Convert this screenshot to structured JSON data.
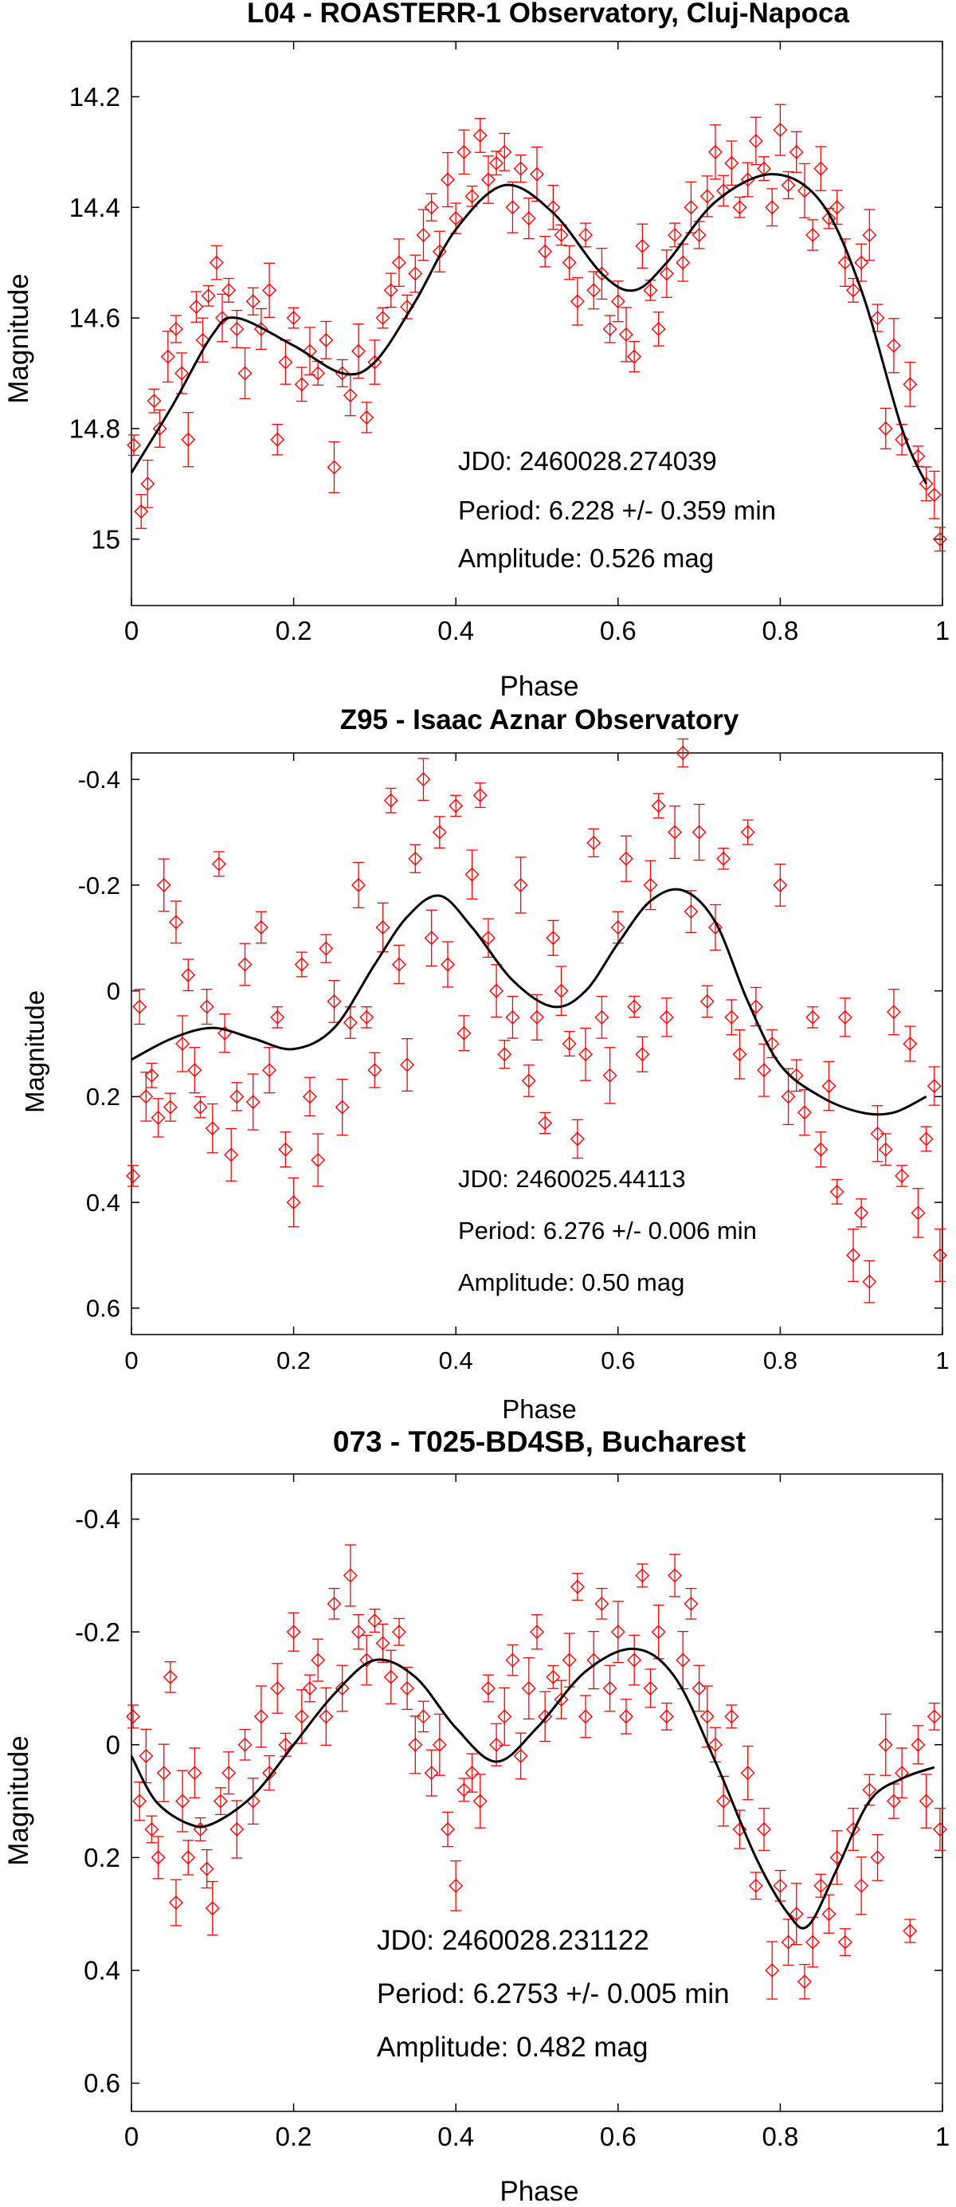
{
  "chart_data": [
    {
      "type": "scatter",
      "title": "L04 - ROASTERR-1 Observatory, Cluj-Napoca",
      "xlabel": "Phase",
      "ylabel": "Magnitude",
      "xlim": [
        0,
        1
      ],
      "ylim": [
        14.1,
        15.12
      ],
      "y_inverted": true,
      "xticks": [
        "0",
        "0.2",
        "0.4",
        "0.6",
        "0.8",
        "1"
      ],
      "yticks": [
        "14.2",
        "14.4",
        "14.6",
        "14.8",
        "15"
      ],
      "grid": false,
      "marker_color": "#ff0000",
      "fit_color": "#000000",
      "annotations": [
        "JD0: 2460028.274039",
        "Period: 6.228 +/- 0.359 min",
        "Amplitude: 0.526 mag"
      ],
      "fit_curve": {
        "x": [
          0,
          0.05,
          0.1,
          0.13,
          0.2,
          0.26,
          0.3,
          0.35,
          0.4,
          0.46,
          0.52,
          0.58,
          0.62,
          0.66,
          0.72,
          0.79,
          0.85,
          0.9,
          0.95,
          0.98
        ],
        "y": [
          14.88,
          14.76,
          14.63,
          14.6,
          14.65,
          14.7,
          14.68,
          14.57,
          14.44,
          14.36,
          14.41,
          14.52,
          14.55,
          14.5,
          14.39,
          14.34,
          14.39,
          14.55,
          14.8,
          14.9
        ]
      },
      "series": [
        {
          "x": [
            0.003,
            0.012,
            0.02,
            0.028,
            0.035,
            0.045,
            0.055,
            0.062,
            0.07,
            0.08,
            0.088,
            0.095,
            0.105,
            0.112,
            0.12,
            0.13,
            0.14,
            0.15,
            0.16,
            0.17,
            0.18,
            0.19,
            0.2,
            0.21,
            0.22,
            0.23,
            0.24,
            0.25,
            0.26,
            0.27,
            0.28,
            0.29,
            0.3,
            0.31,
            0.32,
            0.33,
            0.34,
            0.35,
            0.36,
            0.37,
            0.38,
            0.39,
            0.4,
            0.41,
            0.42,
            0.43,
            0.44,
            0.45,
            0.46,
            0.47,
            0.48,
            0.49,
            0.5,
            0.51,
            0.52,
            0.53,
            0.54,
            0.55,
            0.56,
            0.57,
            0.58,
            0.59,
            0.6,
            0.61,
            0.62,
            0.63,
            0.64,
            0.65,
            0.66,
            0.67,
            0.68,
            0.69,
            0.7,
            0.71,
            0.72,
            0.73,
            0.74,
            0.75,
            0.76,
            0.77,
            0.78,
            0.79,
            0.8,
            0.81,
            0.82,
            0.83,
            0.84,
            0.85,
            0.86,
            0.87,
            0.88,
            0.89,
            0.9,
            0.91,
            0.92,
            0.93,
            0.94,
            0.95,
            0.96,
            0.97,
            0.98,
            0.99,
            0.997
          ],
          "y": [
            14.83,
            14.95,
            14.9,
            14.75,
            14.8,
            14.67,
            14.62,
            14.7,
            14.82,
            14.58,
            14.64,
            14.56,
            14.5,
            14.6,
            14.55,
            14.62,
            14.7,
            14.57,
            14.62,
            14.55,
            14.82,
            14.68,
            14.6,
            14.72,
            14.66,
            14.7,
            14.64,
            14.87,
            14.7,
            14.74,
            14.66,
            14.78,
            14.68,
            14.6,
            14.55,
            14.5,
            14.58,
            14.52,
            14.45,
            14.4,
            14.48,
            14.35,
            14.42,
            14.3,
            14.38,
            14.27,
            14.35,
            14.32,
            14.3,
            14.4,
            14.33,
            14.42,
            14.34,
            14.48,
            14.4,
            14.45,
            14.5,
            14.57,
            14.45,
            14.55,
            14.52,
            14.62,
            14.57,
            14.63,
            14.67,
            14.47,
            14.55,
            14.62,
            14.52,
            14.45,
            14.5,
            14.4,
            14.45,
            14.38,
            14.3,
            14.37,
            14.32,
            14.4,
            14.35,
            14.28,
            14.33,
            14.4,
            14.26,
            14.36,
            14.3,
            14.37,
            14.45,
            14.33,
            14.42,
            14.4,
            14.5,
            14.55,
            14.5,
            14.45,
            14.6,
            14.8,
            14.65,
            14.82,
            14.72,
            14.85,
            14.9,
            14.92,
            15.0
          ]
        }
      ]
    },
    {
      "type": "scatter",
      "title": "Z95 - Isaac Aznar Observatory",
      "xlabel": "Phase",
      "ylabel": "Magnitude",
      "xlim": [
        0,
        1
      ],
      "ylim": [
        -0.45,
        0.65
      ],
      "y_inverted": true,
      "xticks": [
        "0",
        "0.2",
        "0.4",
        "0.6",
        "0.8",
        "1"
      ],
      "yticks": [
        "-0.4",
        "-0.2",
        "0",
        "0.2",
        "0.4",
        "0.6"
      ],
      "grid": false,
      "marker_color": "#ff0000",
      "fit_color": "#000000",
      "annotations": [
        "JD0: 2460025.44113",
        "Period: 6.276 +/- 0.006 min",
        "Amplitude: 0.50 mag"
      ],
      "fit_curve": {
        "x": [
          0,
          0.05,
          0.1,
          0.15,
          0.2,
          0.25,
          0.3,
          0.34,
          0.38,
          0.42,
          0.47,
          0.52,
          0.56,
          0.6,
          0.64,
          0.68,
          0.72,
          0.76,
          0.8,
          0.85,
          0.9,
          0.94,
          0.98
        ],
        "y": [
          0.13,
          0.09,
          0.07,
          0.09,
          0.11,
          0.07,
          -0.05,
          -0.14,
          -0.18,
          -0.12,
          -0.02,
          0.03,
          0.0,
          -0.09,
          -0.17,
          -0.19,
          -0.13,
          0.02,
          0.14,
          0.2,
          0.23,
          0.23,
          0.2
        ]
      },
      "series": [
        {
          "x": [
            0.002,
            0.01,
            0.018,
            0.025,
            0.033,
            0.04,
            0.048,
            0.055,
            0.063,
            0.07,
            0.078,
            0.085,
            0.093,
            0.1,
            0.108,
            0.115,
            0.123,
            0.13,
            0.14,
            0.15,
            0.16,
            0.17,
            0.18,
            0.19,
            0.2,
            0.21,
            0.22,
            0.23,
            0.24,
            0.25,
            0.26,
            0.27,
            0.28,
            0.29,
            0.3,
            0.31,
            0.32,
            0.33,
            0.34,
            0.35,
            0.36,
            0.37,
            0.38,
            0.39,
            0.4,
            0.41,
            0.42,
            0.43,
            0.44,
            0.45,
            0.46,
            0.47,
            0.48,
            0.49,
            0.5,
            0.51,
            0.52,
            0.53,
            0.54,
            0.55,
            0.56,
            0.57,
            0.58,
            0.59,
            0.6,
            0.61,
            0.62,
            0.63,
            0.64,
            0.65,
            0.66,
            0.67,
            0.68,
            0.69,
            0.7,
            0.71,
            0.72,
            0.73,
            0.74,
            0.75,
            0.76,
            0.77,
            0.78,
            0.79,
            0.8,
            0.81,
            0.82,
            0.83,
            0.84,
            0.85,
            0.86,
            0.87,
            0.88,
            0.89,
            0.9,
            0.91,
            0.92,
            0.93,
            0.94,
            0.95,
            0.96,
            0.97,
            0.98,
            0.99,
            0.997
          ],
          "y": [
            0.35,
            0.03,
            0.2,
            0.16,
            0.24,
            -0.2,
            0.22,
            -0.13,
            0.1,
            -0.03,
            0.15,
            0.22,
            0.03,
            0.26,
            -0.24,
            0.08,
            0.31,
            0.2,
            -0.05,
            0.21,
            -0.12,
            0.15,
            0.05,
            0.3,
            0.4,
            -0.05,
            0.2,
            0.32,
            -0.08,
            0.02,
            0.22,
            0.06,
            -0.2,
            0.05,
            0.15,
            -0.12,
            -0.36,
            -0.05,
            0.14,
            -0.25,
            -0.4,
            -0.1,
            -0.3,
            -0.05,
            -0.35,
            0.08,
            -0.22,
            -0.37,
            -0.1,
            0.0,
            0.12,
            0.05,
            -0.2,
            0.17,
            0.05,
            0.25,
            -0.1,
            0.0,
            0.1,
            0.28,
            0.12,
            -0.28,
            0.05,
            0.16,
            -0.12,
            -0.25,
            0.03,
            0.12,
            -0.2,
            -0.35,
            0.05,
            -0.3,
            -0.45,
            -0.15,
            -0.3,
            0.02,
            -0.12,
            -0.25,
            0.05,
            0.12,
            -0.3,
            0.03,
            0.15,
            0.1,
            -0.2,
            0.2,
            0.16,
            0.23,
            0.05,
            0.3,
            0.18,
            0.38,
            0.05,
            0.5,
            0.42,
            0.55,
            0.27,
            0.3,
            0.04,
            0.35,
            0.1,
            0.42,
            0.28,
            0.18,
            0.5
          ]
        }
      ]
    },
    {
      "type": "scatter",
      "title": "073 - T025-BD4SB, Bucharest",
      "xlabel": "Phase",
      "ylabel": "Magnitude",
      "xlim": [
        0,
        1
      ],
      "ylim": [
        -0.48,
        0.65
      ],
      "y_inverted": true,
      "xticks": [
        "0",
        "0.2",
        "0.4",
        "0.6",
        "0.8",
        "1"
      ],
      "yticks": [
        "-0.4",
        "-0.2",
        "0",
        "0.2",
        "0.4",
        "0.6"
      ],
      "grid": false,
      "marker_color": "#ff0000",
      "fit_color": "#000000",
      "annotations": [
        "JD0: 2460028.231122",
        "Period: 6.2753 +/- 0.005 min",
        "Amplitude: 0.482 mag"
      ],
      "fit_curve": {
        "x": [
          0,
          0.03,
          0.07,
          0.1,
          0.15,
          0.2,
          0.25,
          0.3,
          0.35,
          0.4,
          0.45,
          0.5,
          0.56,
          0.62,
          0.67,
          0.72,
          0.77,
          0.81,
          0.835,
          0.87,
          0.91,
          0.95,
          0.99
        ],
        "y": [
          0.02,
          0.1,
          0.14,
          0.14,
          0.09,
          0.0,
          -0.09,
          -0.15,
          -0.12,
          -0.03,
          0.03,
          -0.03,
          -0.13,
          -0.17,
          -0.12,
          0.03,
          0.2,
          0.3,
          0.32,
          0.22,
          0.1,
          0.06,
          0.04
        ]
      },
      "series": [
        {
          "x": [
            0.002,
            0.01,
            0.018,
            0.025,
            0.033,
            0.04,
            0.048,
            0.055,
            0.063,
            0.07,
            0.078,
            0.085,
            0.093,
            0.1,
            0.11,
            0.12,
            0.13,
            0.14,
            0.15,
            0.16,
            0.17,
            0.18,
            0.19,
            0.2,
            0.21,
            0.22,
            0.23,
            0.24,
            0.25,
            0.26,
            0.27,
            0.28,
            0.29,
            0.3,
            0.31,
            0.32,
            0.33,
            0.34,
            0.35,
            0.36,
            0.37,
            0.38,
            0.39,
            0.4,
            0.41,
            0.42,
            0.43,
            0.44,
            0.45,
            0.46,
            0.47,
            0.48,
            0.49,
            0.5,
            0.51,
            0.52,
            0.53,
            0.54,
            0.55,
            0.56,
            0.57,
            0.58,
            0.59,
            0.6,
            0.61,
            0.62,
            0.63,
            0.64,
            0.65,
            0.66,
            0.67,
            0.68,
            0.69,
            0.7,
            0.71,
            0.72,
            0.73,
            0.74,
            0.75,
            0.76,
            0.77,
            0.78,
            0.79,
            0.8,
            0.81,
            0.82,
            0.83,
            0.84,
            0.85,
            0.86,
            0.87,
            0.88,
            0.89,
            0.9,
            0.91,
            0.92,
            0.93,
            0.94,
            0.95,
            0.96,
            0.97,
            0.98,
            0.99,
            0.997
          ],
          "y": [
            -0.05,
            0.1,
            0.02,
            0.15,
            0.2,
            0.05,
            -0.12,
            0.28,
            0.1,
            0.2,
            0.05,
            0.15,
            0.22,
            0.29,
            0.1,
            0.05,
            0.15,
            0.0,
            0.1,
            -0.05,
            0.05,
            -0.1,
            0.0,
            -0.2,
            -0.05,
            -0.1,
            -0.15,
            -0.05,
            -0.25,
            -0.1,
            -0.3,
            -0.2,
            -0.15,
            -0.22,
            -0.18,
            -0.12,
            -0.2,
            -0.1,
            0.0,
            -0.05,
            0.05,
            0.0,
            0.15,
            0.25,
            0.08,
            0.05,
            0.1,
            -0.1,
            0.0,
            -0.05,
            -0.15,
            0.02,
            -0.1,
            -0.2,
            -0.05,
            -0.12,
            -0.08,
            -0.15,
            -0.28,
            -0.05,
            -0.15,
            -0.25,
            -0.1,
            -0.2,
            -0.05,
            -0.15,
            -0.3,
            -0.1,
            -0.2,
            -0.05,
            -0.3,
            -0.15,
            -0.25,
            -0.1,
            -0.05,
            0.0,
            0.1,
            -0.05,
            0.15,
            0.05,
            0.25,
            0.15,
            0.4,
            0.25,
            0.35,
            0.3,
            0.42,
            0.35,
            0.25,
            0.3,
            0.2,
            0.35,
            0.15,
            0.25,
            0.08,
            0.2,
            0.0,
            0.1,
            0.05,
            0.33,
            0.0,
            0.1,
            -0.05,
            0.15
          ]
        }
      ]
    }
  ]
}
